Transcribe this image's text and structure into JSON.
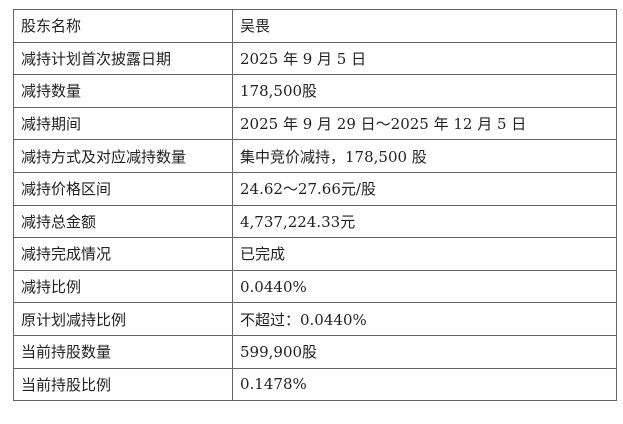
{
  "rows": [
    {
      "label": "股东名称",
      "value": "吴畏"
    },
    {
      "label": "减持计划首次披露日期",
      "value": "2025 年 9 月 5 日"
    },
    {
      "label": "减持数量",
      "value": "178,500股"
    },
    {
      "label": "减持期间",
      "value": "2025 年 9 月 29 日～2025 年 12 月 5 日"
    },
    {
      "label": "减持方式及对应减持数量",
      "value": "集中竞价减持，178,500 股"
    },
    {
      "label": "减持价格区间",
      "value": "24.62～27.66元/股"
    },
    {
      "label": "减持总金额",
      "value": "4,737,224.33元"
    },
    {
      "label": "减持完成情况",
      "value": "已完成"
    },
    {
      "label": "减持比例",
      "value": "0.0440%"
    },
    {
      "label": "原计划减持比例",
      "value": "不超过：0.0440%"
    },
    {
      "label": "当前持股数量",
      "value": "599,900股"
    },
    {
      "label": "当前持股比例",
      "value": "0.1478%"
    }
  ]
}
